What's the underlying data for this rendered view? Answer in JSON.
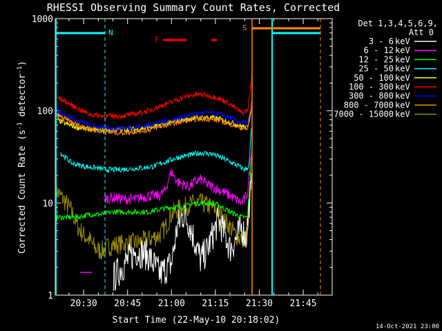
{
  "chart_data": {
    "type": "line",
    "title": "RHESSI Observing Summary Count Rates, Corrected",
    "xlabel": "Start Time (22-May-10 20:18:02)",
    "ylabel": "Corrected Count Rate (s",
    "ylabel_sup1": "-1",
    "ylabel_mid": " detector",
    "ylabel_sup2": "-1",
    "ylabel_end": ")",
    "y_scale": "log",
    "ylim": [
      1,
      1000
    ],
    "xlim_minutes": [
      20.3,
      34.9
    ],
    "x_ticks": [
      {
        "min": 30,
        "label": "20:30"
      },
      {
        "min": 45,
        "label": "20:45"
      },
      {
        "min": 60,
        "label": "21:00"
      },
      {
        "min": 75,
        "label": "21:15"
      },
      {
        "min": 90,
        "label": "21:30"
      },
      {
        "min": 105,
        "label": "21:45"
      }
    ],
    "y_ticks": [
      {
        "value": 1,
        "label": "1"
      },
      {
        "value": 10,
        "label": "10"
      },
      {
        "value": 100,
        "label": "100"
      },
      {
        "value": 1000,
        "label": "1000"
      }
    ],
    "legend_header": [
      "Det 1,3,4,5,6,9,",
      "Att 0"
    ],
    "legend_position": "right",
    "footer": "14-Oct-2021 23:00",
    "series": [
      {
        "name": "3 - 6 keV",
        "color": "#ffffff",
        "points": [
          [
            40,
            1.5
          ],
          [
            44,
            2.2
          ],
          [
            48,
            3.0
          ],
          [
            52,
            2.7
          ],
          [
            56,
            1.7
          ],
          [
            60,
            2.2
          ],
          [
            62,
            5.5
          ],
          [
            64,
            7.5
          ],
          [
            66,
            6.0
          ],
          [
            68,
            3.8
          ],
          [
            70,
            2.4
          ],
          [
            72,
            3.0
          ],
          [
            74,
            4.4
          ],
          [
            76,
            6.5
          ],
          [
            78,
            4.8
          ],
          [
            80,
            3.2
          ],
          [
            82,
            4.0
          ],
          [
            84,
            5.5
          ],
          [
            85.5,
            4.0
          ],
          [
            86.5,
            9.5
          ],
          [
            87.5,
            16
          ]
        ]
      },
      {
        "name": "6 - 12 keV",
        "color": "#ff00ff",
        "points": [
          [
            37,
            11
          ],
          [
            40,
            11.5
          ],
          [
            44,
            11
          ],
          [
            48,
            11
          ],
          [
            52,
            12
          ],
          [
            56,
            12
          ],
          [
            58,
            14
          ],
          [
            59,
            18
          ],
          [
            60,
            22
          ],
          [
            61,
            19
          ],
          [
            62,
            17
          ],
          [
            64,
            16
          ],
          [
            66,
            15
          ],
          [
            68,
            17
          ],
          [
            70,
            18
          ],
          [
            72,
            16
          ],
          [
            74,
            15
          ],
          [
            76,
            14
          ],
          [
            78,
            13
          ],
          [
            80,
            12
          ],
          [
            82,
            11
          ],
          [
            84,
            10
          ],
          [
            85,
            11
          ],
          [
            86,
            13
          ],
          [
            87.5,
            45
          ]
        ]
      },
      {
        "name": "12 - 25 keV",
        "color": "#00ff00",
        "points": [
          [
            20.5,
            7
          ],
          [
            24,
            7
          ],
          [
            28,
            7
          ],
          [
            32,
            7.5
          ],
          [
            36,
            7.5
          ],
          [
            40,
            8
          ],
          [
            44,
            8
          ],
          [
            48,
            8
          ],
          [
            52,
            8
          ],
          [
            56,
            8.5
          ],
          [
            60,
            9
          ],
          [
            64,
            9
          ],
          [
            68,
            10
          ],
          [
            72,
            10
          ],
          [
            76,
            9.5
          ],
          [
            80,
            8
          ],
          [
            84,
            7
          ],
          [
            86,
            7
          ],
          [
            87.5,
            40
          ]
        ]
      },
      {
        "name": "25 - 50 keV",
        "color": "#00ffff",
        "points": [
          [
            22,
            35
          ],
          [
            26,
            27
          ],
          [
            30,
            25
          ],
          [
            34,
            24
          ],
          [
            38,
            23
          ],
          [
            42,
            23
          ],
          [
            46,
            23.5
          ],
          [
            50,
            24
          ],
          [
            54,
            25
          ],
          [
            58,
            28
          ],
          [
            62,
            31
          ],
          [
            66,
            33
          ],
          [
            70,
            35
          ],
          [
            74,
            34
          ],
          [
            78,
            30
          ],
          [
            82,
            26
          ],
          [
            85,
            23
          ],
          [
            86.5,
            25
          ],
          [
            87.5,
            80
          ]
        ]
      },
      {
        "name": "50 - 100 keV",
        "color": "#ffff00",
        "points": [
          [
            21,
            80
          ],
          [
            24,
            72
          ],
          [
            28,
            66
          ],
          [
            32,
            63
          ],
          [
            36,
            62
          ],
          [
            40,
            62
          ],
          [
            44,
            63
          ],
          [
            48,
            63
          ],
          [
            52,
            66
          ],
          [
            56,
            70
          ],
          [
            60,
            75
          ],
          [
            64,
            80
          ],
          [
            68,
            84
          ],
          [
            72,
            85
          ],
          [
            76,
            82
          ],
          [
            80,
            75
          ],
          [
            84,
            68
          ],
          [
            86,
            66
          ],
          [
            87.5,
            130
          ]
        ]
      },
      {
        "name": "100 - 300 keV",
        "color": "#ff0000",
        "points": [
          [
            21,
            140
          ],
          [
            24,
            125
          ],
          [
            28,
            105
          ],
          [
            32,
            92
          ],
          [
            36,
            88
          ],
          [
            40,
            87
          ],
          [
            44,
            89
          ],
          [
            48,
            93
          ],
          [
            52,
            100
          ],
          [
            56,
            112
          ],
          [
            60,
            125
          ],
          [
            64,
            140
          ],
          [
            68,
            150
          ],
          [
            72,
            148
          ],
          [
            76,
            138
          ],
          [
            80,
            118
          ],
          [
            84,
            95
          ],
          [
            86,
            100
          ],
          [
            87.5,
            240
          ]
        ]
      },
      {
        "name": "300 - 800 keV",
        "color": "#0000ff",
        "points": [
          [
            21,
            100
          ],
          [
            24,
            90
          ],
          [
            28,
            78
          ],
          [
            32,
            70
          ],
          [
            36,
            66
          ],
          [
            40,
            64
          ],
          [
            44,
            65
          ],
          [
            48,
            67
          ],
          [
            52,
            70
          ],
          [
            56,
            75
          ],
          [
            60,
            80
          ],
          [
            64,
            86
          ],
          [
            68,
            92
          ],
          [
            72,
            95
          ],
          [
            76,
            92
          ],
          [
            80,
            84
          ],
          [
            84,
            74
          ],
          [
            86,
            73
          ],
          [
            87.5,
            120
          ]
        ]
      },
      {
        "name": "800 - 7000 keV",
        "color": "#ff8c00",
        "points": [
          [
            21,
            90
          ],
          [
            24,
            80
          ],
          [
            28,
            70
          ],
          [
            32,
            64
          ],
          [
            36,
            60
          ],
          [
            40,
            58
          ],
          [
            44,
            58
          ],
          [
            48,
            60
          ],
          [
            52,
            62
          ],
          [
            56,
            67
          ],
          [
            60,
            72
          ],
          [
            64,
            77
          ],
          [
            68,
            81
          ],
          [
            72,
            82
          ],
          [
            76,
            79
          ],
          [
            80,
            72
          ],
          [
            84,
            65
          ],
          [
            86,
            63
          ],
          [
            87.5,
            110
          ]
        ]
      },
      {
        "name": "7000 - 15000 keV",
        "color": "#9a8a00",
        "points": [
          [
            20.5,
            14
          ],
          [
            22,
            12
          ],
          [
            24,
            10
          ],
          [
            26,
            8
          ],
          [
            28,
            5.5
          ],
          [
            30,
            4.5
          ],
          [
            32,
            4
          ],
          [
            34,
            3.2
          ],
          [
            36,
            3.0
          ],
          [
            38,
            3.3
          ],
          [
            40,
            3.5
          ],
          [
            44,
            3.6
          ],
          [
            48,
            3.7
          ],
          [
            52,
            4.0
          ],
          [
            56,
            4.5
          ],
          [
            58,
            5.5
          ],
          [
            60,
            7.5
          ],
          [
            62,
            8.5
          ],
          [
            64,
            9
          ],
          [
            66,
            9.5
          ],
          [
            68,
            10
          ],
          [
            70,
            10
          ],
          [
            72,
            9.5
          ],
          [
            74,
            9
          ],
          [
            76,
            8
          ],
          [
            78,
            6.5
          ],
          [
            80,
            5.5
          ],
          [
            82,
            4.5
          ],
          [
            84,
            4
          ],
          [
            86,
            4.5
          ],
          [
            87.5,
            20
          ]
        ]
      }
    ],
    "markers": {
      "N_label": "N",
      "S_label": "S",
      "F_label": "F"
    }
  }
}
